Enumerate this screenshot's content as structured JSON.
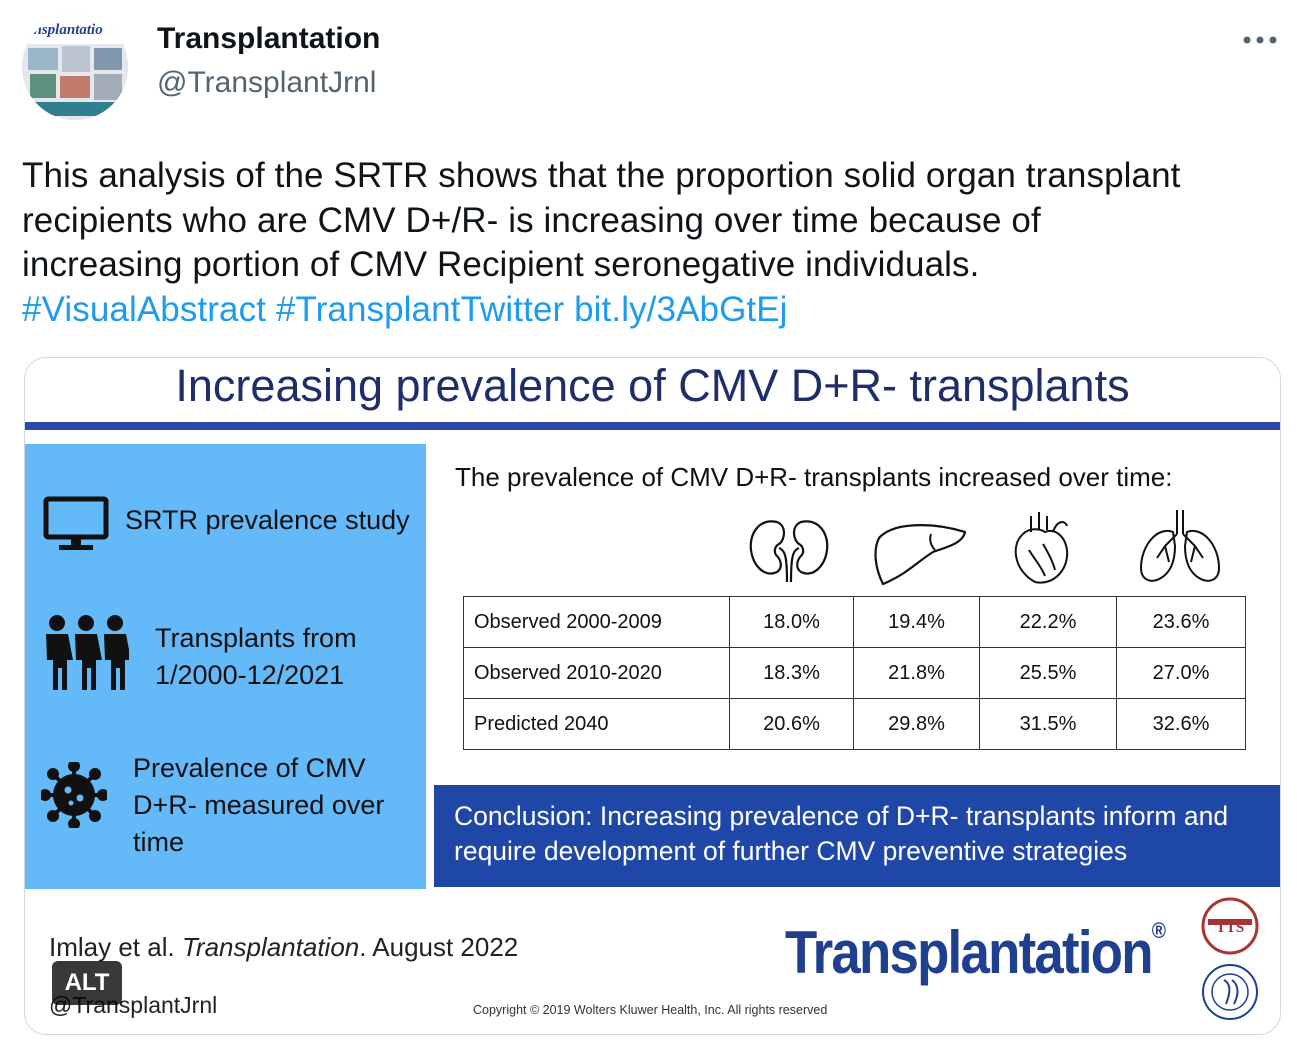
{
  "author": {
    "name": "Transplantation",
    "handle": "@TransplantJrnl",
    "avatar_text": "ansplantatio"
  },
  "more_icon": "ellipsis-icon",
  "tweet": {
    "text": "This analysis of the SRTR shows that the proportion solid organ transplant recipients who are CMV D+/R- is increasing over time because of increasing portion of CMV Recipient seronegative individuals.",
    "hashtag1": "#VisualAbstract",
    "hashtag2": "#TransplantTwitter",
    "link": "bit.ly/3AbGtEj"
  },
  "abstract": {
    "title": "Increasing prevalence of CMV D+R- transplants",
    "left_panel": {
      "item1": "SRTR prevalence study",
      "item2_line1": "Transplants from",
      "item2_line2": "1/2000-12/2021",
      "item3_line1": "Prevalence of CMV",
      "item3_line2": "D+R- measured over",
      "item3_line3": "time"
    },
    "heading": "The prevalence of CMV D+R- transplants increased over time:",
    "organ_icons": [
      "kidney-icon",
      "liver-icon",
      "heart-icon",
      "lung-icon"
    ],
    "rows": [
      {
        "label": "Observed 2000-2009",
        "values": [
          "18.0%",
          "19.4%",
          "22.2%",
          "23.6%"
        ]
      },
      {
        "label": "Observed 2010-2020",
        "values": [
          "18.3%",
          "21.8%",
          "25.5%",
          "27.0%"
        ]
      },
      {
        "label": "Predicted 2040",
        "values": [
          "20.6%",
          "29.8%",
          "31.5%",
          "32.6%"
        ]
      }
    ],
    "conclusion_line1": "Conclusion: Increasing prevalence of D+R- transplants inform and",
    "conclusion_line2": "require development of further CMV preventive strategies",
    "citation_authors": "Imlay et al.",
    "citation_journal": "Transplantation",
    "citation_date": ". August 2022",
    "handle": "@TransplantJrnl",
    "journal_logo": "Transplantation",
    "logo_mark": "®",
    "copyright": "Copyright © 2019 Wolters Kluwer Health, Inc. All rights reserved",
    "society_badge": "TTS",
    "alt_label": "ALT"
  },
  "colors": {
    "link": "#1d9bf0",
    "title_blue": "#1f2d6b",
    "panel_blue": "#64b9f9",
    "conclusion_blue": "#1f47a8"
  }
}
